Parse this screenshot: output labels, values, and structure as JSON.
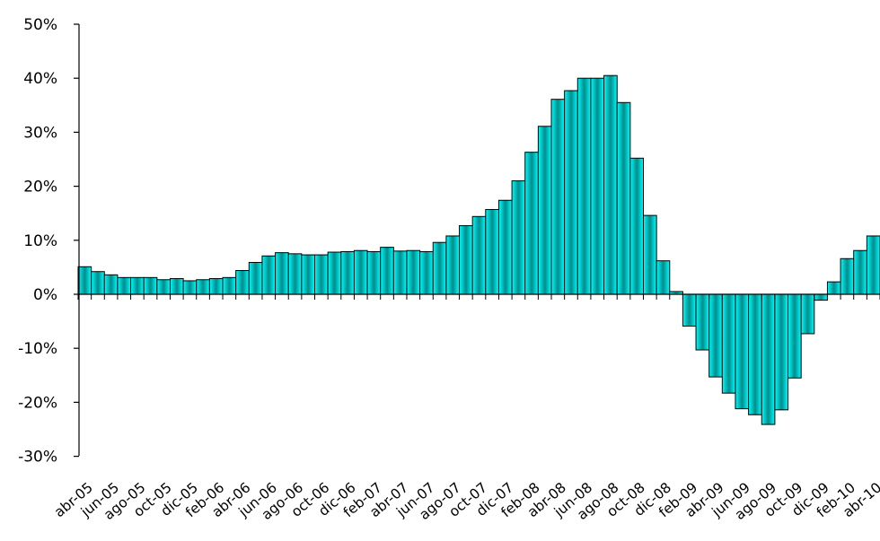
{
  "chart_data": {
    "type": "bar",
    "title": "",
    "xlabel": "",
    "ylabel": "",
    "ylim": [
      -30,
      50
    ],
    "y_ticks": [
      50,
      40,
      30,
      20,
      10,
      0,
      -10,
      -20,
      -30
    ],
    "y_tick_labels": [
      "50%",
      "40%",
      "30%",
      "20%",
      "10%",
      "0%",
      "-10%",
      "-20%",
      "-30%"
    ],
    "grid": false,
    "legend": "none",
    "colors": {
      "bar_edge": "#00ffff",
      "bar_center": "#008b8b",
      "axis": "#000000"
    },
    "x_tick_labels": [
      "abr-05",
      "jun-05",
      "ago-05",
      "oct-05",
      "dic-05",
      "feb-06",
      "abr-06",
      "jun-06",
      "ago-06",
      "oct-06",
      "dic-06",
      "feb-07",
      "abr-07",
      "jun-07",
      "ago-07",
      "oct-07",
      "dic-07",
      "feb-08",
      "abr-08",
      "jun-08",
      "ago-08",
      "oct-08",
      "dic-08",
      "feb-09",
      "abr-09",
      "jun-09",
      "ago-09",
      "oct-09",
      "dic-09",
      "feb-10",
      "abr-10"
    ],
    "values": [
      5.1,
      4.2,
      3.6,
      3.1,
      3.1,
      3.1,
      2.7,
      2.9,
      2.5,
      2.7,
      2.9,
      3.1,
      4.4,
      5.9,
      7.1,
      7.7,
      7.5,
      7.3,
      7.3,
      7.8,
      7.9,
      8.1,
      7.9,
      8.7,
      8.0,
      8.1,
      7.9,
      9.6,
      10.8,
      12.7,
      14.4,
      15.7,
      17.4,
      21.0,
      26.3,
      31.1,
      36.1,
      37.7,
      40.0,
      40.0,
      40.5,
      35.5,
      25.2,
      14.6,
      6.2,
      0.5,
      -5.9,
      -10.3,
      -15.3,
      -18.3,
      -21.2,
      -22.3,
      -24.1,
      -21.4,
      -15.5,
      -7.3,
      -1.1,
      2.3,
      6.6,
      8.1,
      10.8
    ]
  }
}
